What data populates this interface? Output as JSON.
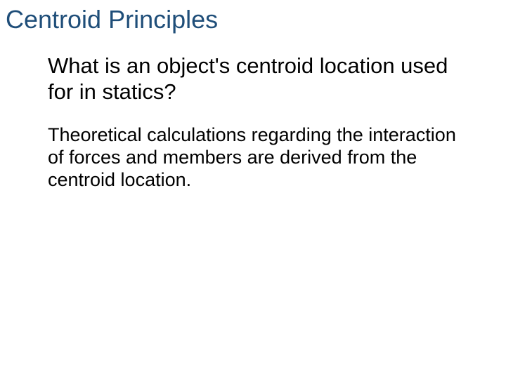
{
  "title": {
    "text": "Centroid Principles",
    "color": "#1f4e79",
    "fontsize": 36
  },
  "question": {
    "text": "What is an object's centroid location used for in statics?",
    "color": "#000000",
    "fontsize": 31
  },
  "answer": {
    "text": "Theoretical calculations regarding the interaction of forces and members are derived from the centroid location.",
    "color": "#000000",
    "fontsize": 27
  },
  "background_color": "#ffffff"
}
